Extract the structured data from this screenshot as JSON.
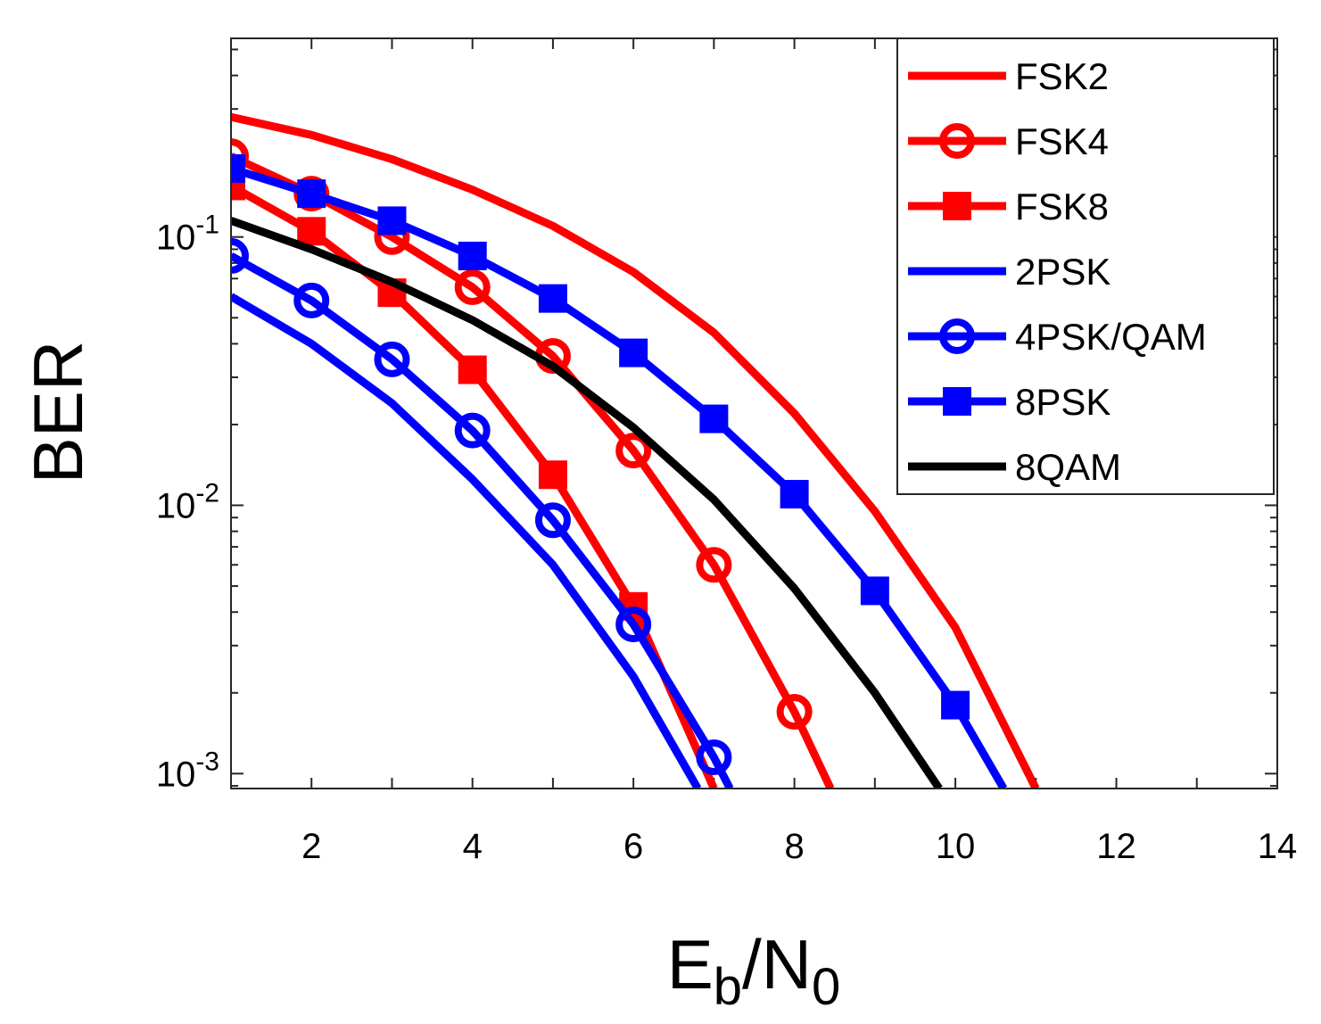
{
  "chart_data": {
    "type": "line",
    "title": "",
    "xlabel": {
      "base": "E",
      "sub1": "b",
      "mid": "/N",
      "sub2": "0"
    },
    "ylabel": "BER",
    "xlim": [
      1,
      14
    ],
    "ylim": [
      0.00088,
      0.55
    ],
    "yscale": "log",
    "xticks": [
      2,
      4,
      6,
      8,
      10,
      12,
      14
    ],
    "yticks": [
      {
        "value": 0.1,
        "base": "10",
        "exp": "-1"
      },
      {
        "value": 0.01,
        "base": "10",
        "exp": "-2"
      },
      {
        "value": 0.001,
        "base": "10",
        "exp": "-3"
      }
    ],
    "legend_position": "top-right",
    "series": [
      {
        "name": "FSK2",
        "color": "#ff0000",
        "marker": "none",
        "x": [
          1,
          2,
          3,
          4,
          5,
          6,
          7,
          8,
          9,
          10,
          11
        ],
        "y": [
          0.28,
          0.24,
          0.195,
          0.15,
          0.11,
          0.074,
          0.044,
          0.022,
          0.0095,
          0.0035,
          0.00088
        ]
      },
      {
        "name": "FSK4",
        "color": "#ff0000",
        "marker": "circle",
        "x": [
          1,
          2,
          3,
          4,
          5,
          6,
          7,
          8,
          8.45
        ],
        "y": [
          0.2,
          0.145,
          0.1,
          0.065,
          0.036,
          0.016,
          0.006,
          0.0017,
          0.00088
        ]
      },
      {
        "name": "FSK8",
        "color": "#ff0000",
        "marker": "square",
        "x": [
          1,
          2,
          3,
          4,
          5,
          6,
          7
        ],
        "y": [
          0.155,
          0.105,
          0.062,
          0.032,
          0.013,
          0.0042,
          0.00088
        ]
      },
      {
        "name": "2PSK",
        "color": "#0000ff",
        "marker": "none",
        "x": [
          1,
          2,
          3,
          4,
          5,
          6,
          6.8
        ],
        "y": [
          0.06,
          0.04,
          0.024,
          0.0125,
          0.006,
          0.0023,
          0.00088
        ]
      },
      {
        "name": "4PSK/QAM",
        "color": "#0000ff",
        "marker": "circle",
        "x": [
          1,
          2,
          3,
          4,
          5,
          6,
          7,
          7.2
        ],
        "y": [
          0.085,
          0.058,
          0.035,
          0.019,
          0.0088,
          0.0036,
          0.00115,
          0.00088
        ]
      },
      {
        "name": "8PSK",
        "color": "#0000ff",
        "marker": "square",
        "x": [
          1,
          2,
          3,
          4,
          5,
          6,
          7,
          8,
          9,
          10,
          10.6
        ],
        "y": [
          0.18,
          0.145,
          0.115,
          0.085,
          0.059,
          0.037,
          0.021,
          0.011,
          0.0048,
          0.0018,
          0.00088
        ]
      },
      {
        "name": "8QAM",
        "color": "#000000",
        "marker": "none",
        "x": [
          1,
          2,
          3,
          4,
          5,
          6,
          7,
          8,
          9,
          9.8
        ],
        "y": [
          0.115,
          0.09,
          0.068,
          0.049,
          0.033,
          0.0195,
          0.0105,
          0.0049,
          0.002,
          0.00088
        ]
      }
    ]
  }
}
